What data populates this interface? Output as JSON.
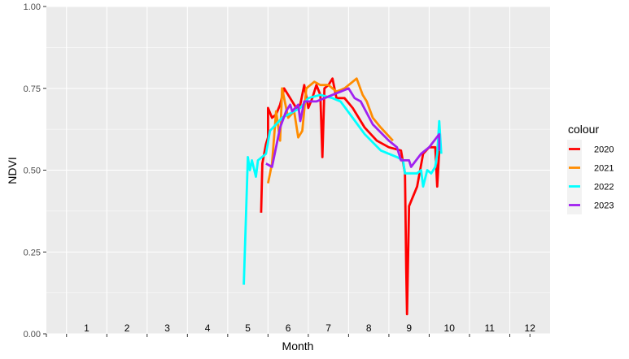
{
  "chart_data": {
    "type": "line",
    "title": "",
    "xlabel": "Month",
    "ylabel": "NDVI",
    "ylim": [
      0,
      1
    ],
    "xlim": [
      0.5,
      13.0
    ],
    "y_ticks": [
      "0.00",
      "0.25",
      "0.50",
      "0.75",
      "1.00"
    ],
    "y_tick_values": [
      0,
      0.25,
      0.5,
      0.75,
      1.0
    ],
    "month_labels": [
      "1",
      "2",
      "3",
      "4",
      "5",
      "6",
      "7",
      "8",
      "9",
      "10",
      "11",
      "12"
    ],
    "legend_title": "colour",
    "legend_position": "right",
    "grid": true,
    "panel_background": "#ebebeb",
    "series": [
      {
        "name": "2020",
        "color": "#ff0000",
        "points": [
          [
            5.83,
            0.37
          ],
          [
            5.86,
            0.52
          ],
          [
            5.95,
            0.58
          ],
          [
            6.0,
            0.6
          ],
          [
            6.0,
            0.69
          ],
          [
            6.1,
            0.66
          ],
          [
            6.2,
            0.67
          ],
          [
            6.3,
            0.7
          ],
          [
            6.4,
            0.75
          ],
          [
            6.55,
            0.72
          ],
          [
            6.7,
            0.69
          ],
          [
            6.8,
            0.7
          ],
          [
            6.9,
            0.76
          ],
          [
            7.0,
            0.69
          ],
          [
            7.1,
            0.72
          ],
          [
            7.2,
            0.76
          ],
          [
            7.3,
            0.73
          ],
          [
            7.35,
            0.54
          ],
          [
            7.4,
            0.75
          ],
          [
            7.5,
            0.76
          ],
          [
            7.6,
            0.78
          ],
          [
            7.7,
            0.72
          ],
          [
            7.9,
            0.72
          ],
          [
            8.1,
            0.69
          ],
          [
            8.4,
            0.63
          ],
          [
            8.7,
            0.59
          ],
          [
            9.0,
            0.57
          ],
          [
            9.3,
            0.56
          ],
          [
            9.4,
            0.49
          ],
          [
            9.43,
            0.2
          ],
          [
            9.45,
            0.06
          ],
          [
            9.5,
            0.39
          ],
          [
            9.7,
            0.45
          ],
          [
            9.85,
            0.55
          ],
          [
            10.0,
            0.57
          ],
          [
            10.05,
            0.57
          ],
          [
            10.15,
            0.57
          ],
          [
            10.2,
            0.45
          ],
          [
            10.25,
            0.56
          ]
        ]
      },
      {
        "name": "2021",
        "color": "#ff8c00",
        "points": [
          [
            6.0,
            0.46
          ],
          [
            6.1,
            0.52
          ],
          [
            6.2,
            0.68
          ],
          [
            6.3,
            0.59
          ],
          [
            6.35,
            0.75
          ],
          [
            6.5,
            0.66
          ],
          [
            6.65,
            0.68
          ],
          [
            6.75,
            0.6
          ],
          [
            6.85,
            0.62
          ],
          [
            6.95,
            0.75
          ],
          [
            7.15,
            0.77
          ],
          [
            7.3,
            0.76
          ],
          [
            7.5,
            0.76
          ],
          [
            7.7,
            0.74
          ],
          [
            7.9,
            0.75
          ],
          [
            8.1,
            0.77
          ],
          [
            8.2,
            0.78
          ],
          [
            8.35,
            0.73
          ],
          [
            8.45,
            0.71
          ],
          [
            8.6,
            0.66
          ],
          [
            8.8,
            0.63
          ],
          [
            9.1,
            0.59
          ]
        ]
      },
      {
        "name": "2022",
        "color": "#00ffff",
        "points": [
          [
            5.4,
            0.15
          ],
          [
            5.5,
            0.54
          ],
          [
            5.55,
            0.5
          ],
          [
            5.6,
            0.53
          ],
          [
            5.7,
            0.48
          ],
          [
            5.75,
            0.53
          ],
          [
            5.85,
            0.54
          ],
          [
            5.95,
            0.55
          ],
          [
            6.05,
            0.62
          ],
          [
            6.2,
            0.64
          ],
          [
            6.35,
            0.66
          ],
          [
            6.5,
            0.67
          ],
          [
            6.65,
            0.68
          ],
          [
            6.8,
            0.69
          ],
          [
            7.0,
            0.72
          ],
          [
            7.3,
            0.73
          ],
          [
            7.6,
            0.72
          ],
          [
            7.8,
            0.71
          ],
          [
            8.1,
            0.66
          ],
          [
            8.4,
            0.61
          ],
          [
            8.8,
            0.56
          ],
          [
            9.2,
            0.54
          ],
          [
            9.35,
            0.53
          ],
          [
            9.4,
            0.49
          ],
          [
            9.7,
            0.49
          ],
          [
            9.8,
            0.5
          ],
          [
            9.85,
            0.45
          ],
          [
            9.95,
            0.5
          ],
          [
            10.05,
            0.49
          ],
          [
            10.15,
            0.51
          ],
          [
            10.2,
            0.55
          ],
          [
            10.25,
            0.65
          ],
          [
            10.3,
            0.55
          ]
        ]
      },
      {
        "name": "2023",
        "color": "#a020f0",
        "points": [
          [
            5.95,
            0.52
          ],
          [
            6.1,
            0.51
          ],
          [
            6.3,
            0.63
          ],
          [
            6.45,
            0.68
          ],
          [
            6.55,
            0.7
          ],
          [
            6.6,
            0.68
          ],
          [
            6.75,
            0.7
          ],
          [
            6.8,
            0.65
          ],
          [
            6.9,
            0.71
          ],
          [
            7.2,
            0.71
          ],
          [
            7.6,
            0.73
          ],
          [
            7.8,
            0.74
          ],
          [
            8.0,
            0.75
          ],
          [
            8.15,
            0.72
          ],
          [
            8.3,
            0.71
          ],
          [
            8.6,
            0.64
          ],
          [
            9.0,
            0.59
          ],
          [
            9.2,
            0.57
          ],
          [
            9.3,
            0.53
          ],
          [
            9.5,
            0.53
          ],
          [
            9.55,
            0.51
          ],
          [
            9.8,
            0.55
          ],
          [
            10.0,
            0.57
          ],
          [
            10.25,
            0.61
          ],
          [
            10.25,
            0.56
          ]
        ]
      }
    ]
  }
}
